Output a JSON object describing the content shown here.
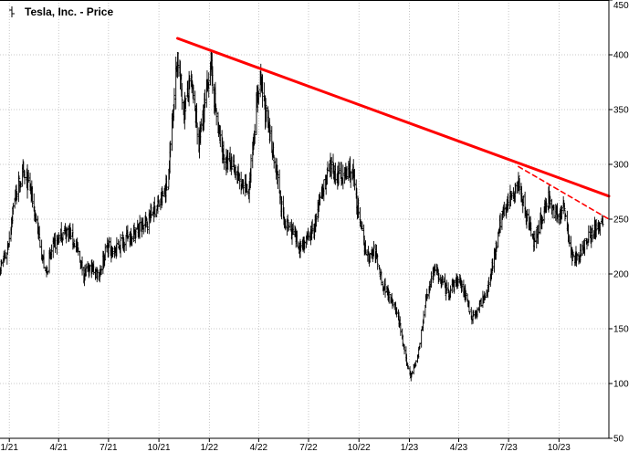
{
  "chart_data": {
    "type": "line",
    "style": "ohlc-bars",
    "title": "Tesla, Inc. - Price",
    "xlabel": "",
    "ylabel": "",
    "x_axis": {
      "start": "2020-12-15",
      "end": "2023-12-31",
      "tick_labels": [
        "1/21",
        "4/21",
        "7/21",
        "10/21",
        "1/22",
        "4/22",
        "7/22",
        "10/22",
        "1/23",
        "4/23",
        "7/23",
        "10/23"
      ],
      "tick_dates": [
        "2021-01-01",
        "2021-04-01",
        "2021-07-01",
        "2021-10-01",
        "2022-01-01",
        "2022-04-01",
        "2022-07-01",
        "2022-10-01",
        "2023-01-01",
        "2023-04-01",
        "2023-07-01",
        "2023-10-01"
      ]
    },
    "y_axis": {
      "position": "right",
      "ylim": [
        50,
        450
      ],
      "ticks": [
        50,
        100,
        150,
        200,
        250,
        300,
        350,
        400,
        450
      ]
    },
    "grid": "dotted",
    "series": [
      {
        "color": "#000000",
        "points": [
          [
            "2020-12-15",
            205
          ],
          [
            "2020-12-28",
            220
          ],
          [
            "2021-01-11",
            270
          ],
          [
            "2021-01-25",
            290
          ],
          [
            "2021-02-08",
            280
          ],
          [
            "2021-02-22",
            240
          ],
          [
            "2021-03-08",
            200
          ],
          [
            "2021-03-22",
            225
          ],
          [
            "2021-04-05",
            235
          ],
          [
            "2021-04-19",
            240
          ],
          [
            "2021-05-03",
            225
          ],
          [
            "2021-05-17",
            200
          ],
          [
            "2021-05-31",
            205
          ],
          [
            "2021-06-14",
            200
          ],
          [
            "2021-06-28",
            225
          ],
          [
            "2021-07-12",
            220
          ],
          [
            "2021-07-26",
            230
          ],
          [
            "2021-08-09",
            235
          ],
          [
            "2021-08-23",
            240
          ],
          [
            "2021-09-06",
            245
          ],
          [
            "2021-09-20",
            258
          ],
          [
            "2021-10-04",
            265
          ],
          [
            "2021-10-18",
            285
          ],
          [
            "2021-10-25",
            340
          ],
          [
            "2021-11-04",
            400
          ],
          [
            "2021-11-15",
            350
          ],
          [
            "2021-11-29",
            375
          ],
          [
            "2021-12-13",
            320
          ],
          [
            "2021-12-27",
            365
          ],
          [
            "2022-01-03",
            395
          ],
          [
            "2022-01-17",
            330
          ],
          [
            "2022-01-31",
            300
          ],
          [
            "2022-02-14",
            300
          ],
          [
            "2022-02-28",
            280
          ],
          [
            "2022-03-14",
            275
          ],
          [
            "2022-03-28",
            355
          ],
          [
            "2022-04-04",
            375
          ],
          [
            "2022-04-18",
            335
          ],
          [
            "2022-05-02",
            300
          ],
          [
            "2022-05-16",
            250
          ],
          [
            "2022-05-30",
            240
          ],
          [
            "2022-06-13",
            225
          ],
          [
            "2022-06-27",
            230
          ],
          [
            "2022-07-11",
            240
          ],
          [
            "2022-07-25",
            275
          ],
          [
            "2022-08-08",
            295
          ],
          [
            "2022-08-22",
            290
          ],
          [
            "2022-09-05",
            290
          ],
          [
            "2022-09-19",
            295
          ],
          [
            "2022-10-03",
            245
          ],
          [
            "2022-10-17",
            215
          ],
          [
            "2022-10-31",
            220
          ],
          [
            "2022-11-14",
            190
          ],
          [
            "2022-11-28",
            180
          ],
          [
            "2022-12-12",
            160
          ],
          [
            "2022-12-26",
            120
          ],
          [
            "2023-01-03",
            108
          ],
          [
            "2023-01-17",
            125
          ],
          [
            "2023-01-31",
            175
          ],
          [
            "2023-02-14",
            205
          ],
          [
            "2023-02-28",
            195
          ],
          [
            "2023-03-14",
            180
          ],
          [
            "2023-03-28",
            195
          ],
          [
            "2023-04-11",
            185
          ],
          [
            "2023-04-25",
            160
          ],
          [
            "2023-05-09",
            170
          ],
          [
            "2023-05-23",
            185
          ],
          [
            "2023-06-06",
            220
          ],
          [
            "2023-06-20",
            255
          ],
          [
            "2023-07-05",
            270
          ],
          [
            "2023-07-19",
            285
          ],
          [
            "2023-08-02",
            255
          ],
          [
            "2023-08-16",
            230
          ],
          [
            "2023-08-30",
            250
          ],
          [
            "2023-09-13",
            270
          ],
          [
            "2023-09-27",
            250
          ],
          [
            "2023-10-11",
            260
          ],
          [
            "2023-10-25",
            215
          ],
          [
            "2023-11-08",
            215
          ],
          [
            "2023-11-22",
            235
          ],
          [
            "2023-12-06",
            240
          ],
          [
            "2023-12-20",
            250
          ]
        ]
      }
    ],
    "annotations": [
      {
        "type": "trendline",
        "color": "#ff0000",
        "line": "solid",
        "from": [
          "2021-11-04",
          415
        ],
        "to": [
          "2023-12-31",
          271
        ]
      },
      {
        "type": "trendline",
        "color": "#ff0000",
        "line": "dashed",
        "from": [
          "2023-07-19",
          298
        ],
        "to": [
          "2023-12-31",
          250
        ]
      }
    ]
  }
}
